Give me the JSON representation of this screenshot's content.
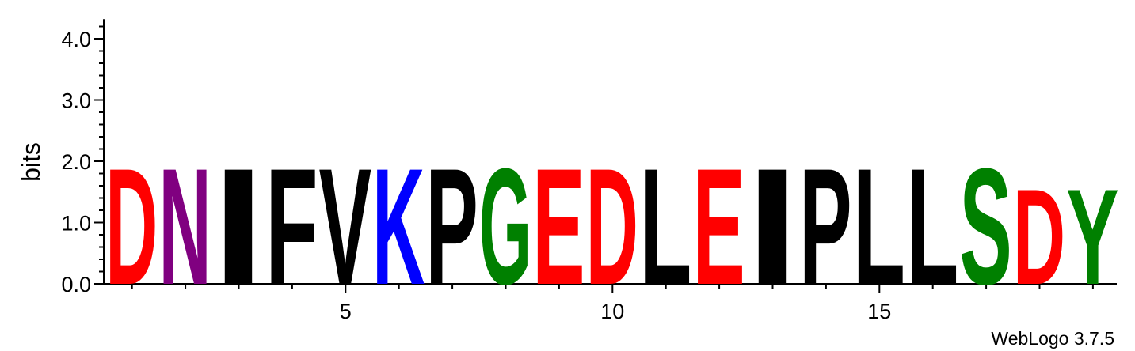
{
  "chart_data": {
    "type": "sequence-logo",
    "ylabel": "bits",
    "ylim": [
      0,
      4.32
    ],
    "y_ticks": [
      "0.0",
      "1.0",
      "2.0",
      "3.0",
      "4.0"
    ],
    "x_ticks": [
      5,
      10,
      15
    ],
    "credit": "WebLogo 3.7.5",
    "positions": [
      {
        "pos": 1,
        "letter": "D",
        "bits": 1.95,
        "color": "#ff0000"
      },
      {
        "pos": 2,
        "letter": "N",
        "bits": 1.95,
        "color": "#800080"
      },
      {
        "pos": 3,
        "letter": "I",
        "bits": 1.95,
        "color": "#000000"
      },
      {
        "pos": 4,
        "letter": "F",
        "bits": 1.95,
        "color": "#000000"
      },
      {
        "pos": 5,
        "letter": "V",
        "bits": 1.95,
        "color": "#000000"
      },
      {
        "pos": 6,
        "letter": "K",
        "bits": 1.95,
        "color": "#0000ff"
      },
      {
        "pos": 7,
        "letter": "P",
        "bits": 1.95,
        "color": "#000000"
      },
      {
        "pos": 8,
        "letter": "G",
        "bits": 1.95,
        "color": "#008000"
      },
      {
        "pos": 9,
        "letter": "E",
        "bits": 1.95,
        "color": "#ff0000"
      },
      {
        "pos": 10,
        "letter": "D",
        "bits": 1.95,
        "color": "#ff0000"
      },
      {
        "pos": 11,
        "letter": "L",
        "bits": 1.95,
        "color": "#000000"
      },
      {
        "pos": 12,
        "letter": "E",
        "bits": 1.95,
        "color": "#ff0000"
      },
      {
        "pos": 13,
        "letter": "I",
        "bits": 1.95,
        "color": "#000000"
      },
      {
        "pos": 14,
        "letter": "P",
        "bits": 1.95,
        "color": "#000000"
      },
      {
        "pos": 15,
        "letter": "L",
        "bits": 1.95,
        "color": "#000000"
      },
      {
        "pos": 16,
        "letter": "L",
        "bits": 1.95,
        "color": "#000000"
      },
      {
        "pos": 17,
        "letter": "S",
        "bits": 1.95,
        "color": "#008000"
      },
      {
        "pos": 18,
        "letter": "D",
        "bits": 1.6,
        "color": "#ff0000"
      },
      {
        "pos": 19,
        "letter": "Y",
        "bits": 1.6,
        "color": "#008000"
      }
    ]
  }
}
